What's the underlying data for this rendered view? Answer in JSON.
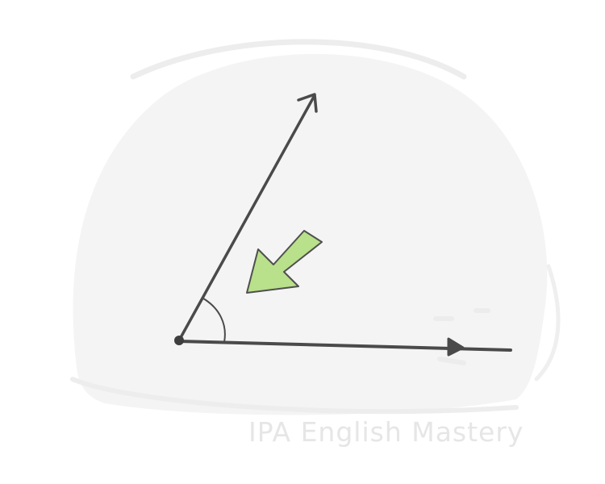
{
  "watermark": {
    "text": "IPA English Mastery"
  },
  "colors": {
    "blob": "#f4f4f4",
    "stroke": "#4a4a4a",
    "pointer_arrow_fill": "#b9e08a",
    "pointer_arrow_outline": "#4f4f4f",
    "watermark": "#e6e6e6"
  },
  "illustration": {
    "subject": "angle",
    "icons": [
      "vertex-dot-icon",
      "angle-arc-icon",
      "pointer-arrow-icon"
    ]
  }
}
